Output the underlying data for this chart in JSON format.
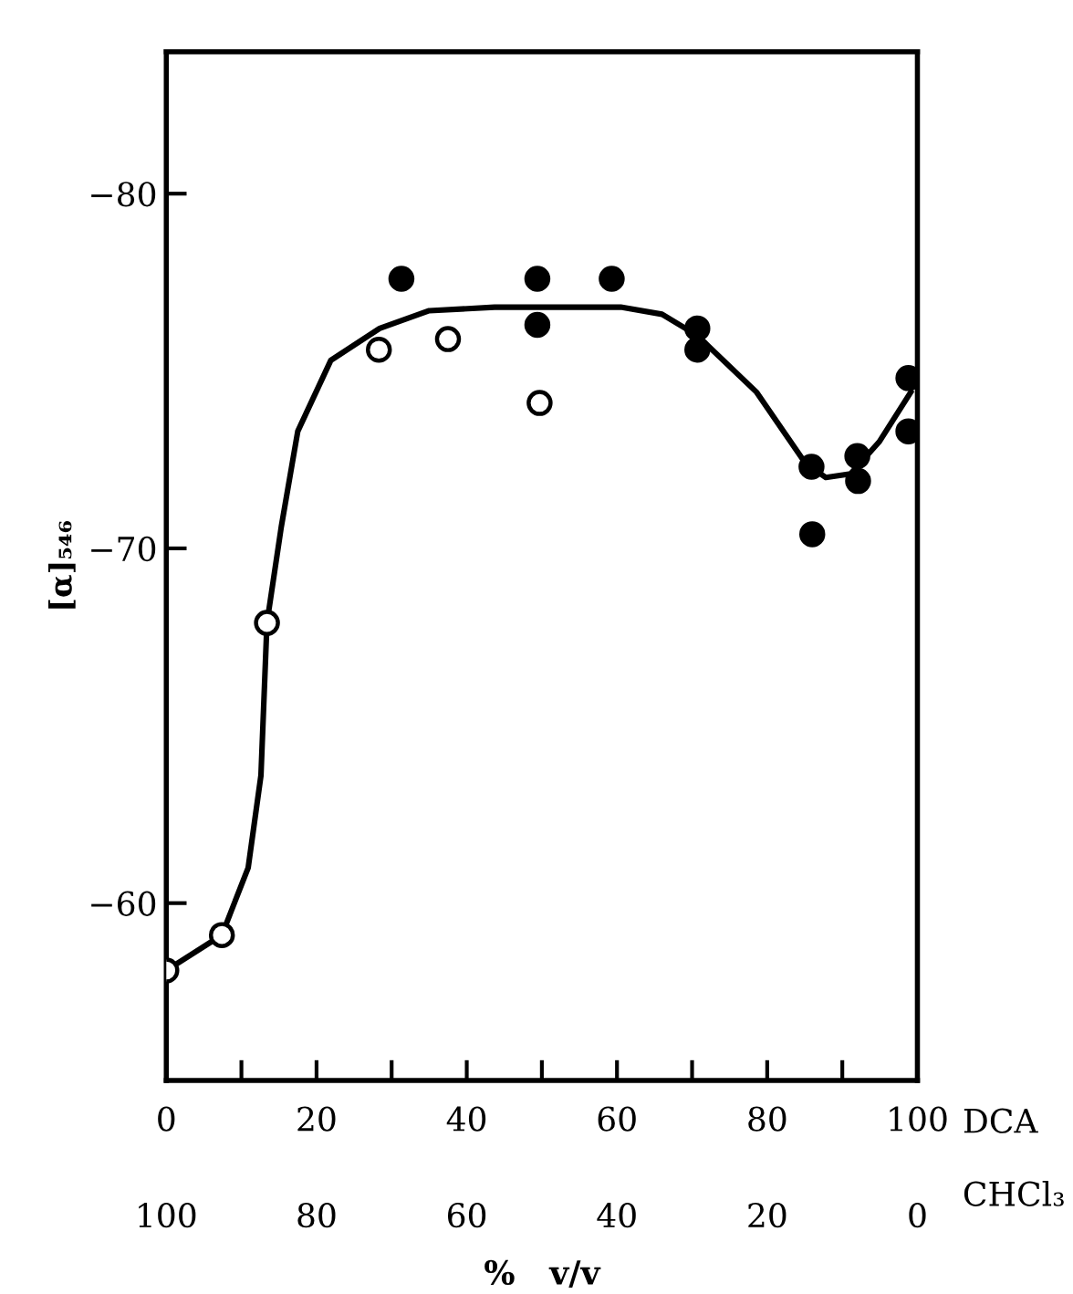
{
  "chart_data": {
    "type": "scatter",
    "ylabel": "[α]₅₄₆",
    "xlabel": "%   v/v",
    "annotations": [
      "DCA",
      "CHCl₃"
    ],
    "xlim": [
      0,
      100
    ],
    "ylim": [
      -55,
      -84
    ],
    "xticks": [
      0,
      {
        "value": 10,
        "label": null
      },
      20,
      {
        "value": 30,
        "label": null
      },
      40,
      {
        "value": 50,
        "label": null
      },
      60,
      {
        "value": 70,
        "label": null
      },
      80,
      {
        "value": 90,
        "label": null
      },
      100
    ],
    "x2lim": [
      100,
      0
    ],
    "x2ticks": [
      100,
      80,
      60,
      40,
      20,
      0
    ],
    "yticks": [
      {
        "value": -80,
        "label": "−80"
      },
      {
        "value": -70,
        "label": "−70"
      },
      {
        "value": -60,
        "label": "−60"
      }
    ],
    "grid": false,
    "legend": false,
    "marker": "circle",
    "series": [
      {
        "color": "#ffffff",
        "x": [
          0,
          7.4,
          13.4,
          28.3,
          37.5,
          49.7
        ],
        "values": [
          -58.1,
          -59.1,
          -67.9,
          -75.6,
          -75.9,
          -74.1
        ]
      },
      {
        "color": "#000000",
        "x": [
          31.3,
          49.4,
          49.4,
          59.3,
          70.7,
          70.7,
          85.9,
          86.0,
          92.0,
          92.1,
          98.8,
          98.8
        ],
        "values": [
          -77.6,
          -77.6,
          -76.3,
          -77.6,
          -76.2,
          -75.6,
          -72.3,
          -70.4,
          -72.6,
          -71.9,
          -74.8,
          -73.3
        ]
      },
      {
        "type": "line",
        "color": "#000000",
        "marker": "none",
        "line_style": "solid",
        "x": [
          0,
          7.4,
          10.9,
          12.6,
          13.4,
          15.3,
          17.5,
          21.9,
          28.4,
          35,
          43.7,
          51.2,
          60.5,
          66.0,
          70.7,
          78.6,
          85.1,
          87.8,
          91.1,
          94.9,
          99.1
        ],
        "values": [
          -58.1,
          -59.1,
          -61.0,
          -63.6,
          -67.9,
          -70.6,
          -73.3,
          -75.3,
          -76.2,
          -76.7,
          -76.8,
          -76.8,
          -76.8,
          -76.6,
          -76.0,
          -74.4,
          -72.4,
          -72.0,
          -72.1,
          -73.0,
          -74.4
        ]
      }
    ]
  }
}
